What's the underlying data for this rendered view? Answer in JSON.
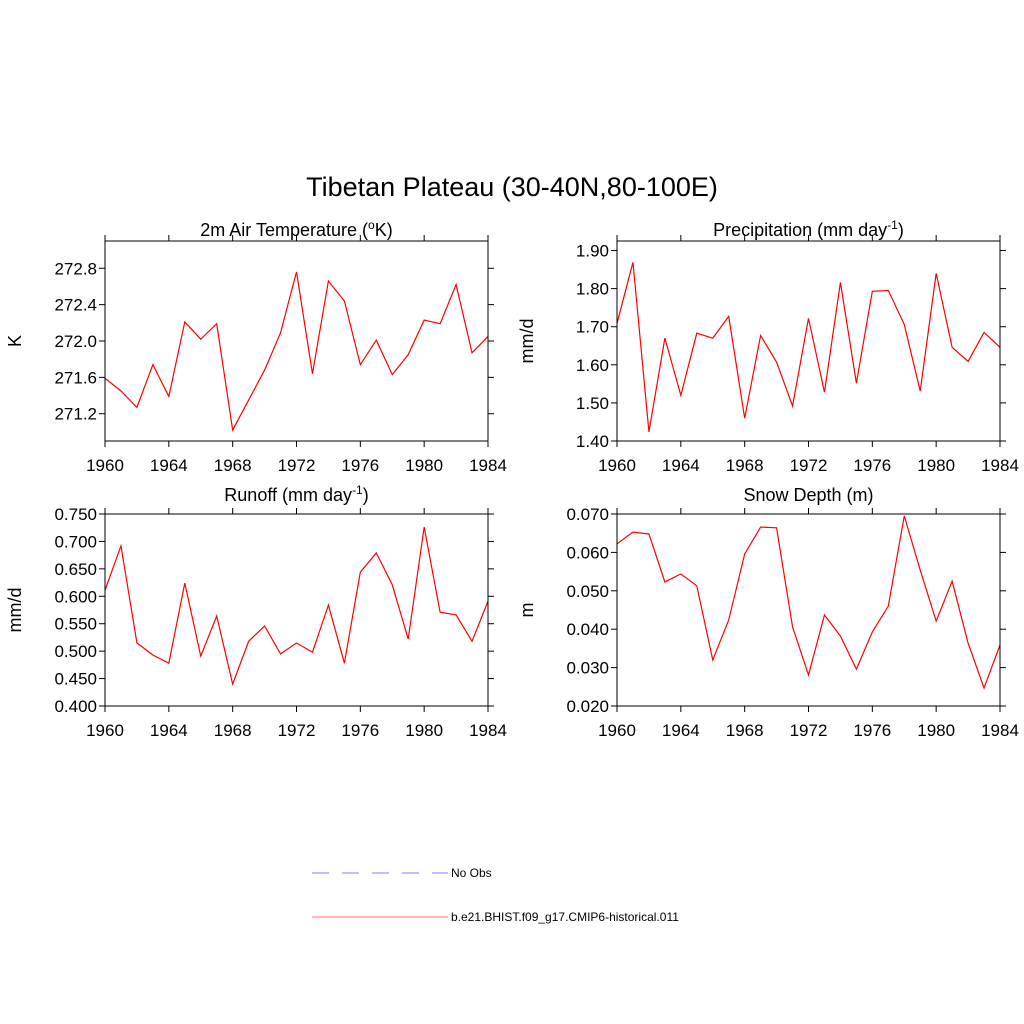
{
  "title": "Tibetan Plateau (30-40N,80-100E)",
  "legend": [
    {
      "name": "No Obs",
      "color": "#9a9aff",
      "dashed": true
    },
    {
      "name": "b.e21.BHIST.f09_g17.CMIP6-historical.011",
      "color": "#ff8a8a",
      "dashed": false
    }
  ],
  "chart_data": [
    {
      "type": "line",
      "title_parts": [
        {
          "text": "2m Air Temperature ("
        },
        {
          "text": "o",
          "sup": true
        },
        {
          "text": "K)"
        }
      ],
      "ylabel": "K",
      "color": "#ff0000",
      "x": [
        1960,
        1961,
        1962,
        1963,
        1964,
        1965,
        1966,
        1967,
        1968,
        1969,
        1970,
        1971,
        1972,
        1973,
        1974,
        1975,
        1976,
        1977,
        1978,
        1979,
        1980,
        1981,
        1982,
        1983,
        1984
      ],
      "xlim": [
        1960,
        1984
      ],
      "xticks": [
        1960,
        1964,
        1968,
        1972,
        1976,
        1980,
        1984
      ],
      "ylim": [
        270.9,
        273.1
      ],
      "yticks": [
        271.2,
        271.6,
        {
          "value": 272,
          "label": "272.0"
        },
        272.4,
        272.8
      ],
      "values": [
        271.59,
        271.45,
        271.27,
        271.74,
        271.39,
        272.21,
        272.02,
        272.19,
        271.02,
        271.35,
        271.68,
        272.09,
        272.76,
        271.64,
        272.66,
        272.44,
        271.74,
        272.01,
        271.63,
        271.85,
        272.23,
        272.19,
        272.62,
        271.87,
        272.05
      ]
    },
    {
      "type": "line",
      "title_parts": [
        {
          "text": "Precipitation (mm day"
        },
        {
          "text": "-1",
          "sup": true
        },
        {
          "text": ")"
        }
      ],
      "ylabel": "mm/d",
      "color": "#ff0000",
      "x": [
        1960,
        1961,
        1962,
        1963,
        1964,
        1965,
        1966,
        1967,
        1968,
        1969,
        1970,
        1971,
        1972,
        1973,
        1974,
        1975,
        1976,
        1977,
        1978,
        1979,
        1980,
        1981,
        1982,
        1983,
        1984
      ],
      "xlim": [
        1960,
        1984
      ],
      "xticks": [
        1960,
        1964,
        1968,
        1972,
        1976,
        1980,
        1984
      ],
      "ylim": [
        1.4,
        1.925
      ],
      "yticks": [
        {
          "value": 1.4,
          "label": "1.40"
        },
        {
          "value": 1.5,
          "label": "1.50"
        },
        {
          "value": 1.6,
          "label": "1.60"
        },
        {
          "value": 1.7,
          "label": "1.70"
        },
        {
          "value": 1.8,
          "label": "1.80"
        },
        {
          "value": 1.9,
          "label": "1.90"
        }
      ],
      "values": [
        1.709,
        1.869,
        1.424,
        1.67,
        1.52,
        1.683,
        1.67,
        1.727,
        1.46,
        1.677,
        1.607,
        1.492,
        1.722,
        1.528,
        1.816,
        1.552,
        1.793,
        1.795,
        1.706,
        1.531,
        1.84,
        1.646,
        1.609,
        1.685,
        1.646
      ]
    },
    {
      "type": "line",
      "title_parts": [
        {
          "text": "Runoff (mm day"
        },
        {
          "text": "-1",
          "sup": true
        },
        {
          "text": ")"
        }
      ],
      "ylabel": "mm/d",
      "color": "#ff0000",
      "x": [
        1960,
        1961,
        1962,
        1963,
        1964,
        1965,
        1966,
        1967,
        1968,
        1969,
        1970,
        1971,
        1972,
        1973,
        1974,
        1975,
        1976,
        1977,
        1978,
        1979,
        1980,
        1981,
        1982,
        1983,
        1984
      ],
      "xlim": [
        1960,
        1984
      ],
      "xticks": [
        1960,
        1964,
        1968,
        1972,
        1976,
        1980,
        1984
      ],
      "ylim": [
        0.4,
        0.75
      ],
      "yticks": [
        {
          "value": 0.4,
          "label": "0.400"
        },
        {
          "value": 0.45,
          "label": "0.450"
        },
        {
          "value": 0.5,
          "label": "0.500"
        },
        {
          "value": 0.55,
          "label": "0.550"
        },
        {
          "value": 0.6,
          "label": "0.600"
        },
        {
          "value": 0.65,
          "label": "0.650"
        },
        {
          "value": 0.7,
          "label": "0.700"
        },
        {
          "value": 0.75,
          "label": "0.750"
        }
      ],
      "values": [
        0.611,
        0.692,
        0.515,
        0.493,
        0.478,
        0.624,
        0.491,
        0.564,
        0.44,
        0.518,
        0.546,
        0.495,
        0.515,
        0.498,
        0.584,
        0.478,
        0.644,
        0.679,
        0.621,
        0.522,
        0.726,
        0.571,
        0.566,
        0.518,
        0.591
      ]
    },
    {
      "type": "line",
      "title_parts": [
        {
          "text": "Snow Depth (m)"
        }
      ],
      "ylabel": "m",
      "color": "#ff0000",
      "x": [
        1960,
        1961,
        1962,
        1963,
        1964,
        1965,
        1966,
        1967,
        1968,
        1969,
        1970,
        1971,
        1972,
        1973,
        1974,
        1975,
        1976,
        1977,
        1978,
        1979,
        1980,
        1981,
        1982,
        1983,
        1984
      ],
      "xlim": [
        1960,
        1984
      ],
      "xticks": [
        1960,
        1964,
        1968,
        1972,
        1976,
        1980,
        1984
      ],
      "ylim": [
        0.02,
        0.07
      ],
      "yticks": [
        {
          "value": 0.02,
          "label": "0.020"
        },
        {
          "value": 0.03,
          "label": "0.030"
        },
        {
          "value": 0.04,
          "label": "0.040"
        },
        {
          "value": 0.05,
          "label": "0.050"
        },
        {
          "value": 0.06,
          "label": "0.060"
        },
        {
          "value": 0.07,
          "label": "0.070"
        }
      ],
      "values": [
        0.0622,
        0.0653,
        0.0648,
        0.0523,
        0.0544,
        0.0513,
        0.032,
        0.0424,
        0.0596,
        0.0666,
        0.0664,
        0.0406,
        0.0281,
        0.0437,
        0.0382,
        0.0296,
        0.0393,
        0.046,
        0.0695,
        0.0554,
        0.0421,
        0.0525,
        0.0364,
        0.0247,
        0.0359
      ]
    }
  ]
}
